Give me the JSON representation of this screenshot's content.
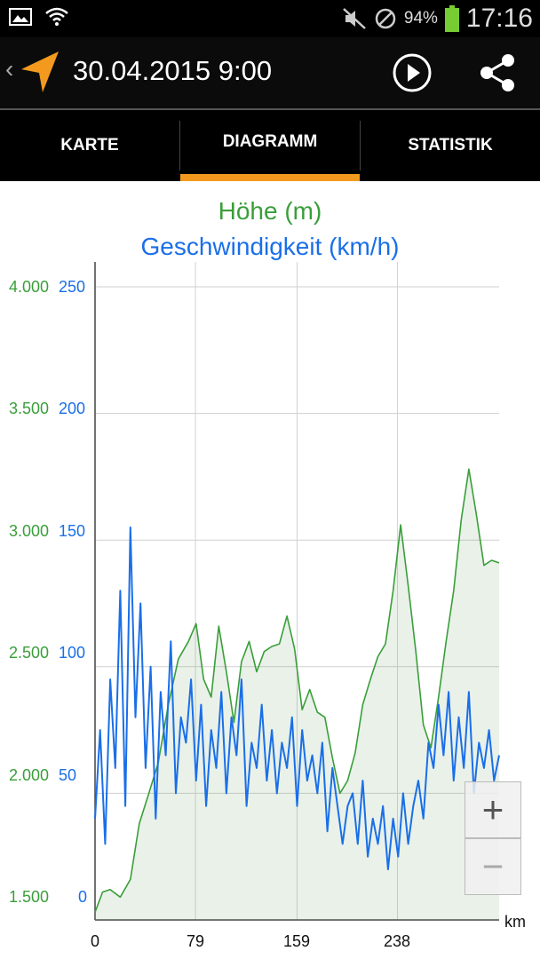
{
  "status_bar": {
    "battery_percent": "94%",
    "time": "17:16",
    "icons": [
      "image-icon",
      "wifi-icon",
      "mute-icon",
      "blocked-icon",
      "battery-icon"
    ]
  },
  "app_bar": {
    "title": "30.04.2015 9:00",
    "icons": [
      "back-chevron-icon",
      "navigation-arrow-logo",
      "play-icon",
      "share-icon"
    ]
  },
  "tabs": [
    {
      "label": "KARTE",
      "selected": false
    },
    {
      "label": "DIAGRAMM",
      "selected": true
    },
    {
      "label": "STATISTIK",
      "selected": false
    }
  ],
  "colors": {
    "accent": "#f39a1e",
    "elevation": "#3a9e3a",
    "speed": "#1a6fe8"
  },
  "zoom": {
    "plus": "+",
    "minus": "−"
  },
  "chart_data": {
    "type": "line",
    "title": [
      "Höhe (m)",
      "Geschwindigkeit (km/h)"
    ],
    "xlabel": "km",
    "x_ticks": [
      "0",
      "79",
      "159",
      "238"
    ],
    "y_left_ticks": [
      "1.500",
      "2.000",
      "2.500",
      "3.000",
      "3.500",
      "4.000"
    ],
    "y_right_ticks": [
      "0",
      "50",
      "100",
      "150",
      "200",
      "250"
    ],
    "xlim": [
      0,
      320
    ],
    "ylim_left": [
      1500,
      4000
    ],
    "ylim_right": [
      0,
      250
    ],
    "grid": true,
    "series": [
      {
        "name": "Höhe (m)",
        "axis": "left",
        "color": "#3a9e3a",
        "filled": true,
        "x": [
          0,
          6,
          12,
          20,
          28,
          35,
          42,
          50,
          58,
          66,
          74,
          80,
          86,
          92,
          98,
          104,
          110,
          116,
          122,
          128,
          134,
          140,
          146,
          152,
          158,
          164,
          170,
          176,
          182,
          188,
          194,
          200,
          206,
          212,
          218,
          224,
          230,
          236,
          242,
          248,
          254,
          260,
          266,
          272,
          278,
          284,
          290,
          296,
          302,
          308,
          314,
          320
        ],
        "y": [
          1530,
          1610,
          1620,
          1590,
          1660,
          1880,
          1990,
          2120,
          2350,
          2530,
          2600,
          2670,
          2450,
          2380,
          2660,
          2480,
          2280,
          2520,
          2600,
          2480,
          2560,
          2580,
          2590,
          2700,
          2570,
          2330,
          2410,
          2320,
          2300,
          2140,
          2000,
          2050,
          2160,
          2350,
          2450,
          2540,
          2590,
          2800,
          3060,
          2820,
          2560,
          2270,
          2180,
          2380,
          2600,
          2800,
          3080,
          3280,
          3100,
          2900,
          2920,
          2910
        ]
      },
      {
        "name": "Geschwindigkeit (km/h)",
        "axis": "right",
        "color": "#1a6fe8",
        "filled": false,
        "x": [
          0,
          4,
          8,
          12,
          16,
          20,
          24,
          28,
          32,
          36,
          40,
          44,
          48,
          52,
          56,
          60,
          64,
          68,
          72,
          76,
          80,
          84,
          88,
          92,
          96,
          100,
          104,
          108,
          112,
          116,
          120,
          124,
          128,
          132,
          136,
          140,
          144,
          148,
          152,
          156,
          160,
          164,
          168,
          172,
          176,
          180,
          184,
          188,
          192,
          196,
          200,
          204,
          208,
          212,
          216,
          220,
          224,
          228,
          232,
          236,
          240,
          244,
          248,
          252,
          256,
          260,
          264,
          268,
          272,
          276,
          280,
          284,
          288,
          292,
          296,
          300,
          304,
          308,
          312,
          316,
          320
        ],
        "y": [
          40,
          75,
          30,
          95,
          60,
          130,
          45,
          155,
          80,
          125,
          60,
          100,
          40,
          90,
          65,
          110,
          50,
          80,
          70,
          95,
          55,
          85,
          45,
          75,
          60,
          90,
          50,
          80,
          65,
          95,
          45,
          70,
          60,
          85,
          55,
          75,
          50,
          70,
          60,
          80,
          45,
          75,
          55,
          65,
          50,
          70,
          35,
          60,
          45,
          30,
          45,
          50,
          30,
          55,
          25,
          40,
          30,
          45,
          20,
          40,
          25,
          50,
          30,
          45,
          55,
          40,
          70,
          60,
          85,
          65,
          90,
          55,
          80,
          60,
          90,
          50,
          70,
          60,
          75,
          55,
          65
        ]
      }
    ]
  }
}
